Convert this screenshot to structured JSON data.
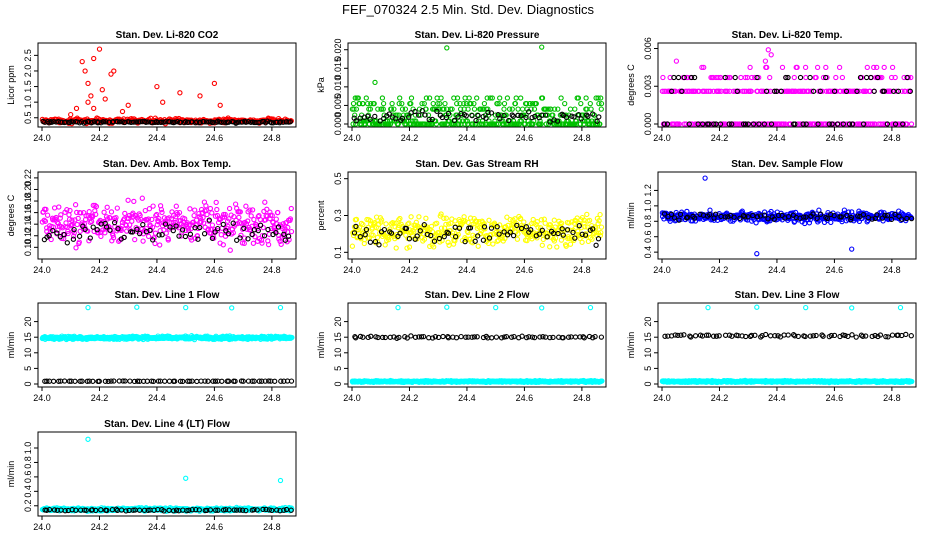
{
  "page": {
    "title": "FEF_070324  2.5 Min. Std. Dev. Diagnostics"
  },
  "colors": {
    "red": "#ff0000",
    "green": "#00c000",
    "magenta": "#ff00ff",
    "yellow": "#ffff00",
    "blue": "#0000ff",
    "cyan": "#00ffff",
    "black": "#000000"
  },
  "chart_data": [
    {
      "id": "co2",
      "type": "scatter",
      "title": "Stan. Dev. Li-820 CO2",
      "ylabel": "Licor ppm",
      "xlim": [
        24.0,
        24.87
      ],
      "xticks": [
        "24.0",
        "24.2",
        "24.4",
        "24.6",
        "24.8"
      ],
      "ylim": [
        0.3,
        2.8
      ],
      "yticks": [
        0.5,
        1.0,
        1.5,
        2.0,
        2.5
      ],
      "ytick_labels": [
        "0.5",
        "1.0",
        "1.5",
        "2.0",
        "2.5"
      ],
      "series": [
        {
          "name": "raw",
          "color": "red",
          "kind": "noise",
          "n": 340,
          "base": 0.4,
          "spread": 0.1,
          "extra": [
            [
              24.14,
              2.3
            ],
            [
              24.15,
              2.0
            ],
            [
              24.16,
              1.6
            ],
            [
              24.17,
              1.2
            ],
            [
              24.18,
              2.4
            ],
            [
              24.2,
              2.7
            ],
            [
              24.21,
              1.4
            ],
            [
              24.22,
              1.1
            ],
            [
              24.24,
              1.9
            ],
            [
              24.25,
              2.0
            ],
            [
              24.16,
              1.0
            ],
            [
              24.18,
              0.8
            ],
            [
              24.4,
              1.5
            ],
            [
              24.42,
              1.0
            ],
            [
              24.48,
              1.3
            ],
            [
              24.55,
              1.2
            ],
            [
              24.6,
              1.6
            ],
            [
              24.62,
              0.9
            ],
            [
              24.12,
              0.8
            ],
            [
              24.1,
              0.6
            ],
            [
              24.28,
              0.7
            ],
            [
              24.3,
              0.9
            ]
          ]
        },
        {
          "name": "avg",
          "color": "black",
          "kind": "noise",
          "n": 130,
          "base": 0.36,
          "spread": 0.04
        }
      ]
    },
    {
      "id": "pressure",
      "type": "scatter",
      "title": "Stan. Dev. Li-820 Pressure",
      "ylabel": "kPa",
      "xlim": [
        24.0,
        24.87
      ],
      "xticks": [
        "24.0",
        "24.2",
        "24.4",
        "24.6",
        "24.8"
      ],
      "ylim": [
        0.0,
        0.021
      ],
      "yticks": [
        0.0,
        0.005,
        0.01,
        0.015,
        0.02
      ],
      "ytick_labels": [
        "0.000",
        "0.005",
        "0.010",
        "0.015",
        "0.020"
      ],
      "series": [
        {
          "name": "raw",
          "color": "green",
          "kind": "levels",
          "n": 420,
          "levels": [
            0.0,
            0.0008,
            0.0024,
            0.004,
            0.0055,
            0.007
          ],
          "weights": [
            5,
            3,
            3,
            3,
            2,
            1
          ],
          "extra": [
            [
              24.33,
              0.0205
            ],
            [
              24.66,
              0.0207
            ],
            [
              24.08,
              0.0112
            ]
          ]
        },
        {
          "name": "avg",
          "color": "black",
          "kind": "noise",
          "n": 70,
          "base": 0.002,
          "spread": 0.002
        }
      ]
    },
    {
      "id": "temp",
      "type": "scatter",
      "title": "Stan. Dev. Li-820 Temp.",
      "ylabel": "degrees C",
      "xlim": [
        24.0,
        24.87
      ],
      "xticks": [
        "24.0",
        "24.2",
        "24.4",
        "24.6",
        "24.8"
      ],
      "ylim": [
        0.0,
        0.0062
      ],
      "yticks": [
        0.0,
        0.003,
        0.006
      ],
      "ytick_labels": [
        "0.000",
        "0.003",
        "0.006"
      ],
      "series": [
        {
          "name": "raw",
          "color": "magenta",
          "kind": "levels",
          "n": 360,
          "levels": [
            0.0,
            0.0026,
            0.0037,
            0.0045
          ],
          "weights": [
            6,
            6,
            2,
            1
          ],
          "extra": [
            [
              24.37,
              0.0059
            ],
            [
              24.38,
              0.0055
            ],
            [
              24.36,
              0.005
            ],
            [
              24.05,
              0.005
            ],
            [
              24.57,
              0.0045
            ]
          ]
        },
        {
          "name": "avg",
          "color": "black",
          "kind": "levels",
          "n": 70,
          "levels": [
            0.0,
            0.0026,
            0.0037
          ],
          "weights": [
            3,
            2,
            1
          ]
        }
      ]
    },
    {
      "id": "boxtemp",
      "type": "scatter",
      "title": "Stan. Dev. Amb. Box Temp.",
      "ylabel": "degrees C",
      "xlim": [
        24.0,
        24.87
      ],
      "xticks": [
        "24.0",
        "24.2",
        "24.4",
        "24.6",
        "24.8"
      ],
      "ylim": [
        0.085,
        0.225
      ],
      "yticks": [
        0.1,
        0.12,
        0.14,
        0.16,
        0.18,
        0.2,
        0.22
      ],
      "ytick_labels": [
        "0.10",
        "0.12",
        "0.14",
        "0.16",
        "0.18",
        "0.20",
        "0.22"
      ],
      "series": [
        {
          "name": "raw",
          "color": "magenta",
          "kind": "noise",
          "n": 420,
          "base": 0.14,
          "spread": 0.05
        },
        {
          "name": "avg",
          "color": "black",
          "kind": "noise",
          "n": 70,
          "base": 0.125,
          "spread": 0.025
        }
      ]
    },
    {
      "id": "rh",
      "type": "scatter",
      "title": "Stan. Dev. Gas Stream RH",
      "ylabel": "percent",
      "xlim": [
        24.0,
        24.87
      ],
      "xticks": [
        "24.0",
        "24.2",
        "24.4",
        "24.6",
        "24.8"
      ],
      "ylim": [
        0.08,
        0.52
      ],
      "yticks": [
        0.1,
        0.3,
        0.5
      ],
      "ytick_labels": [
        "0.1",
        "0.3",
        "0.5"
      ],
      "series": [
        {
          "name": "raw",
          "color": "yellow",
          "kind": "noise",
          "n": 420,
          "base": 0.22,
          "spread": 0.12
        },
        {
          "name": "avg",
          "color": "black",
          "kind": "noise",
          "n": 70,
          "base": 0.2,
          "spread": 0.08
        }
      ]
    },
    {
      "id": "sampleflow",
      "type": "scatter",
      "title": "Stan. Dev. Sample Flow",
      "ylabel": "ml/min",
      "xlim": [
        24.0,
        24.87
      ],
      "xticks": [
        "24.0",
        "24.2",
        "24.4",
        "24.6",
        "24.8"
      ],
      "ylim": [
        0.35,
        1.4
      ],
      "yticks": [
        0.4,
        0.6,
        0.8,
        1.0,
        1.2
      ],
      "ytick_labels": [
        "0.4",
        "0.6",
        "0.8",
        "1.0",
        "1.2"
      ],
      "series": [
        {
          "name": "raw",
          "color": "blue",
          "kind": "noise",
          "n": 420,
          "base": 0.86,
          "spread": 0.1,
          "extra": [
            [
              24.15,
              1.36
            ],
            [
              24.33,
              0.38
            ],
            [
              24.66,
              0.44
            ]
          ]
        },
        {
          "name": "avg",
          "color": "black",
          "kind": "noise",
          "n": 70,
          "base": 0.86,
          "spread": 0.06
        }
      ]
    },
    {
      "id": "line1",
      "type": "scatter",
      "title": "Stan. Dev. Line 1 Flow",
      "ylabel": "ml/min",
      "xlim": [
        24.0,
        24.87
      ],
      "xticks": [
        "24.0",
        "24.2",
        "24.4",
        "24.6",
        "24.8"
      ],
      "ylim": [
        0,
        25
      ],
      "yticks": [
        0,
        5,
        10,
        15,
        20
      ],
      "ytick_labels": [
        "0",
        "5",
        "10",
        "15",
        "20"
      ],
      "series": [
        {
          "name": "raw",
          "color": "cyan",
          "kind": "noise",
          "n": 520,
          "base": 14.8,
          "spread": 0.7,
          "extra": [
            [
              24.16,
              24.5
            ],
            [
              24.33,
              24.6
            ],
            [
              24.5,
              24.5
            ],
            [
              24.66,
              24.4
            ],
            [
              24.83,
              24.5
            ]
          ]
        },
        {
          "name": "avg",
          "color": "black",
          "kind": "noise",
          "n": 70,
          "base": 0.9,
          "spread": 0.1
        }
      ]
    },
    {
      "id": "line2",
      "type": "scatter",
      "title": "Stan. Dev. Line 2 Flow",
      "ylabel": "ml/min",
      "xlim": [
        24.0,
        24.87
      ],
      "xticks": [
        "24.0",
        "24.2",
        "24.4",
        "24.6",
        "24.8"
      ],
      "ylim": [
        0,
        25
      ],
      "yticks": [
        0,
        5,
        10,
        15,
        20
      ],
      "ytick_labels": [
        "0",
        "5",
        "10",
        "15",
        "20"
      ],
      "series": [
        {
          "name": "raw",
          "color": "cyan",
          "kind": "noise",
          "n": 520,
          "base": 0.8,
          "spread": 0.4,
          "extra": [
            [
              24.16,
              24.5
            ],
            [
              24.33,
              24.6
            ],
            [
              24.5,
              24.5
            ],
            [
              24.66,
              24.4
            ],
            [
              24.83,
              24.5
            ]
          ]
        },
        {
          "name": "avg",
          "color": "black",
          "kind": "noise",
          "n": 70,
          "base": 15.0,
          "spread": 0.5
        }
      ]
    },
    {
      "id": "line3",
      "type": "scatter",
      "title": "Stan. Dev. Line 3 Flow",
      "ylabel": "ml/min",
      "xlim": [
        24.0,
        24.87
      ],
      "xticks": [
        "24.0",
        "24.2",
        "24.4",
        "24.6",
        "24.8"
      ],
      "ylim": [
        0,
        25
      ],
      "yticks": [
        0,
        5,
        10,
        15,
        20
      ],
      "ytick_labels": [
        "0",
        "5",
        "10",
        "15",
        "20"
      ],
      "series": [
        {
          "name": "raw",
          "color": "cyan",
          "kind": "noise",
          "n": 520,
          "base": 0.8,
          "spread": 0.4,
          "extra": [
            [
              24.16,
              24.5
            ],
            [
              24.33,
              24.6
            ],
            [
              24.5,
              24.5
            ],
            [
              24.66,
              24.4
            ],
            [
              24.83,
              24.5
            ]
          ]
        },
        {
          "name": "avg",
          "color": "black",
          "kind": "noise",
          "n": 70,
          "base": 15.5,
          "spread": 0.5
        }
      ]
    },
    {
      "id": "line4",
      "type": "scatter",
      "title": "Stan. Dev. Line 4 (LT) Flow",
      "ylabel": "ml/min",
      "xlim": [
        24.0,
        24.87
      ],
      "xticks": [
        "24.0",
        "24.2",
        "24.4",
        "24.6",
        "24.8"
      ],
      "ylim": [
        0.1,
        1.18
      ],
      "yticks": [
        0.2,
        0.4,
        0.6,
        0.8,
        1.0
      ],
      "ytick_labels": [
        "0.2",
        "0.4",
        "0.6",
        "0.8",
        "1.0"
      ],
      "series": [
        {
          "name": "raw",
          "color": "cyan",
          "kind": "noise",
          "n": 520,
          "base": 0.15,
          "spread": 0.03,
          "extra": [
            [
              24.16,
              1.12
            ],
            [
              24.5,
              0.58
            ],
            [
              24.83,
              0.55
            ]
          ]
        },
        {
          "name": "avg",
          "color": "black",
          "kind": "noise",
          "n": 70,
          "base": 0.14,
          "spread": 0.015
        }
      ]
    }
  ]
}
